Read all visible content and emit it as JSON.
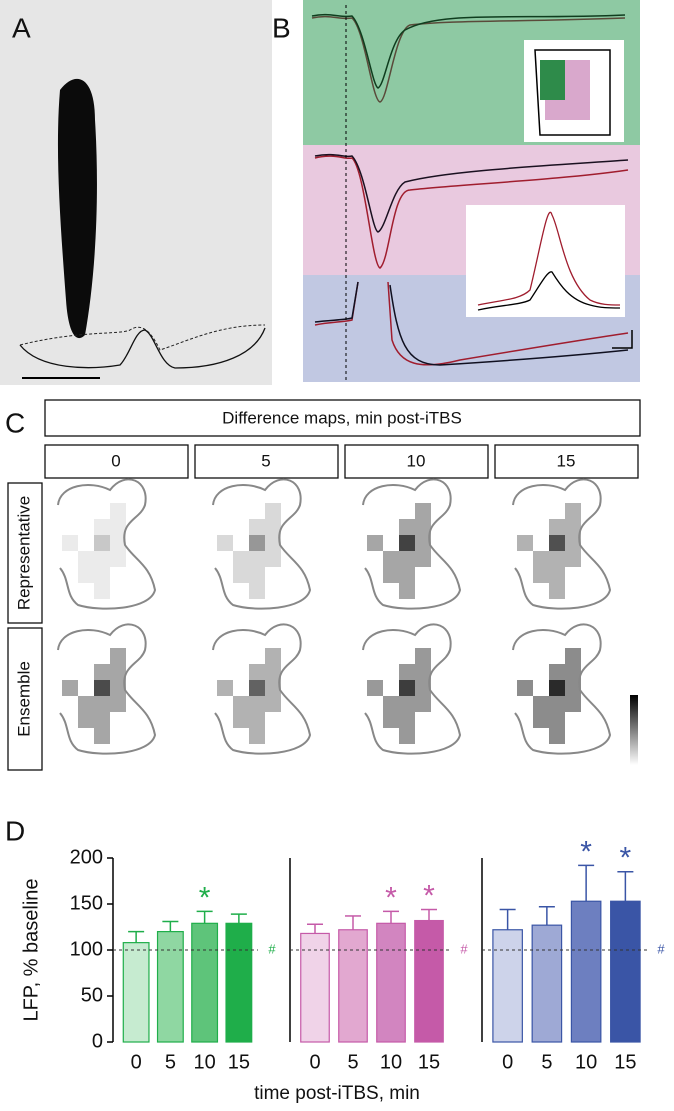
{
  "panels": {
    "a": "A",
    "b": "B",
    "c": "C",
    "d": "D"
  },
  "maps": {
    "header": "Difference maps, min post-iTBS",
    "columns": [
      "0",
      "5",
      "10",
      "15"
    ],
    "rows": [
      "Representative",
      "Ensemble"
    ]
  },
  "chart_data": [
    {
      "type": "bar",
      "ylabel": "LFP, % baseline",
      "categories": [
        "0",
        "5",
        "10",
        "15"
      ],
      "values": [
        108,
        120,
        129,
        129
      ],
      "errors": [
        12,
        11,
        13,
        10
      ],
      "colors": [
        "#c6ebd0",
        "#8fd7a2",
        "#5ec47a",
        "#1fae4a"
      ],
      "edge": "#1fae4a",
      "markers": [
        null,
        null,
        "*",
        null
      ],
      "baseline": 100,
      "baseline_mark": "#",
      "ylim": [
        0,
        200
      ],
      "yticks": [
        0,
        50,
        100,
        150,
        200
      ]
    },
    {
      "type": "bar",
      "xlabel": "time post-iTBS, min",
      "categories": [
        "0",
        "5",
        "10",
        "15"
      ],
      "values": [
        118,
        122,
        129,
        132
      ],
      "errors": [
        10,
        15,
        13,
        12
      ],
      "colors": [
        "#f0d3e8",
        "#e2a8d0",
        "#d285c0",
        "#c55aa8"
      ],
      "edge": "#c55aa8",
      "markers": [
        null,
        null,
        "*",
        "*"
      ],
      "baseline": 100,
      "baseline_mark": "#",
      "ylim": [
        0,
        200
      ]
    },
    {
      "type": "bar",
      "categories": [
        "0",
        "5",
        "10",
        "15"
      ],
      "values": [
        122,
        127,
        153,
        153
      ],
      "errors": [
        22,
        20,
        39,
        32
      ],
      "colors": [
        "#cdd3ea",
        "#9ea9d5",
        "#6d7fc0",
        "#3a55a6"
      ],
      "edge": "#3a55a6",
      "markers": [
        null,
        null,
        "*",
        "*"
      ],
      "baseline": 100,
      "baseline_mark": "#",
      "ylim": [
        0,
        200
      ]
    }
  ]
}
